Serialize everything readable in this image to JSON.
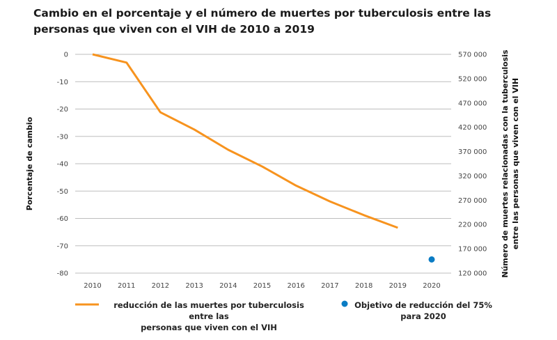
{
  "chart_data": {
    "type": "line",
    "title": "Cambio en el porcentaje y el número de muertes por tuberculosis entre las personas que viven con el VIH de 2010 a 2019",
    "ylabel": "Porcentaje de cambio",
    "y2label": [
      "Número de muertes relacionadas con la tuberculosis",
      "entre las personas que viven con el VIH"
    ],
    "ylim": [
      -80,
      0
    ],
    "y_ticks": [
      "0",
      "-10",
      "-20",
      "-30",
      "-40",
      "-50",
      "-60",
      "-70",
      "-80"
    ],
    "y2_ticks": [
      "570 000",
      "520 000",
      "470 000",
      "420 000",
      "370 000",
      "320 000",
      "270 000",
      "220 000",
      "170 000",
      "120 000"
    ],
    "categories": [
      "2010",
      "2011",
      "2012",
      "2013",
      "2014",
      "2015",
      "2016",
      "2017",
      "2018",
      "2019",
      "2020"
    ],
    "series": [
      {
        "name": "reducción de las muertes por tuberculosis entre las personas que viven con el VIH",
        "line1": "reducción de las muertes por tuberculosis entre las",
        "line2": "personas que viven con el VIH",
        "color": "#f7931e",
        "values": [
          0,
          -3,
          -21.2,
          -27.5,
          -34.9,
          -41,
          -48,
          -53.8,
          -58.8,
          -63.4,
          null
        ]
      },
      {
        "name": "Objetivo de reducción del 75% para 2020",
        "line1": "Objetivo de reducción del 75%",
        "line2": "para 2020",
        "color": "#0a7cc4",
        "values": [
          null,
          null,
          null,
          null,
          null,
          null,
          null,
          null,
          null,
          null,
          -75
        ]
      }
    ],
    "grid": true,
    "legend": "bottom"
  }
}
